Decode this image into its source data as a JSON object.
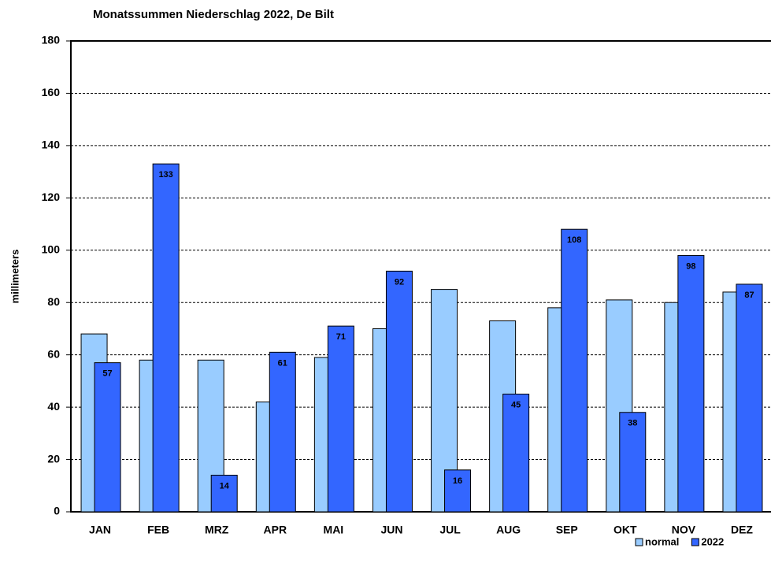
{
  "chart_data": {
    "type": "bar",
    "title": "Monatssummen Niederschlag 2022, De Bilt",
    "y_label": "millimeters",
    "categories": [
      "JAN",
      "FEB",
      "MRZ",
      "APR",
      "MAI",
      "JUN",
      "JUL",
      "AUG",
      "SEP",
      "OKT",
      "NOV",
      "DEZ"
    ],
    "series": [
      {
        "name": "normal",
        "color": "#99ccff",
        "values": [
          68,
          58,
          58,
          42,
          59,
          70,
          85,
          73,
          78,
          81,
          80,
          84
        ]
      },
      {
        "name": "2022",
        "color": "#3366ff",
        "values": [
          57,
          133,
          14,
          61,
          71,
          92,
          16,
          45,
          108,
          38,
          98,
          87
        ],
        "show_labels": true
      }
    ],
    "ylim": [
      0,
      180
    ],
    "yticks": [
      0,
      20,
      40,
      60,
      80,
      100,
      120,
      140,
      160,
      180
    ],
    "grid": true,
    "legend": "bottom-right"
  }
}
